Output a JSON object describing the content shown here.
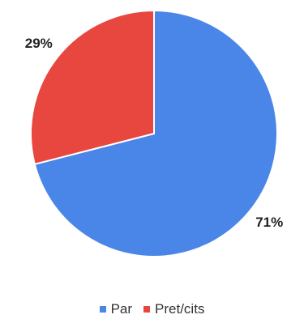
{
  "chart_data": {
    "type": "pie",
    "categories": [
      "Par",
      "Pret/cits"
    ],
    "values": [
      71,
      29
    ],
    "value_labels": [
      "71%",
      "29%"
    ],
    "colors": [
      "#4a86e8",
      "#e8473f"
    ],
    "start_angle_deg": 0,
    "direction": "clockwise",
    "legend_position": "bottom"
  }
}
